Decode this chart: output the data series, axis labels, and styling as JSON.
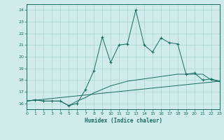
{
  "xlabel": "Humidex (Indice chaleur)",
  "background_color": "#d0ecea",
  "grid_color": "#b0d8d4",
  "line_color": "#1a6b60",
  "x_min": 0,
  "x_max": 23,
  "y_min": 15.5,
  "y_max": 24.5,
  "series1_x": [
    0,
    1,
    2,
    3,
    4,
    5,
    6,
    7,
    8,
    9,
    10,
    11,
    12,
    13,
    14,
    15,
    16,
    17,
    18,
    19,
    20,
    21,
    22,
    23
  ],
  "series1_y": [
    16.2,
    16.3,
    16.2,
    16.2,
    16.2,
    15.8,
    16.0,
    17.2,
    18.8,
    21.7,
    19.5,
    21.0,
    21.1,
    24.0,
    21.0,
    20.4,
    21.6,
    21.2,
    21.1,
    18.5,
    18.6,
    18.0,
    18.1,
    17.9
  ],
  "series2_x": [
    0,
    1,
    2,
    3,
    4,
    5,
    6,
    7,
    8,
    9,
    10,
    11,
    12,
    13,
    14,
    15,
    16,
    17,
    18,
    19,
    20,
    21,
    22,
    23
  ],
  "series2_y": [
    16.2,
    16.3,
    16.2,
    16.2,
    16.2,
    15.8,
    16.2,
    16.5,
    16.9,
    17.2,
    17.5,
    17.7,
    17.9,
    18.0,
    18.1,
    18.2,
    18.3,
    18.4,
    18.5,
    18.5,
    18.5,
    18.5,
    18.0,
    17.9
  ],
  "series3_x": [
    0,
    23
  ],
  "series3_y": [
    16.2,
    17.9
  ],
  "yticks": [
    16,
    17,
    18,
    19,
    20,
    21,
    22,
    23,
    24
  ],
  "xticks": [
    0,
    1,
    2,
    3,
    4,
    5,
    6,
    7,
    8,
    9,
    10,
    11,
    12,
    13,
    14,
    15,
    16,
    17,
    18,
    19,
    20,
    21,
    22,
    23
  ]
}
